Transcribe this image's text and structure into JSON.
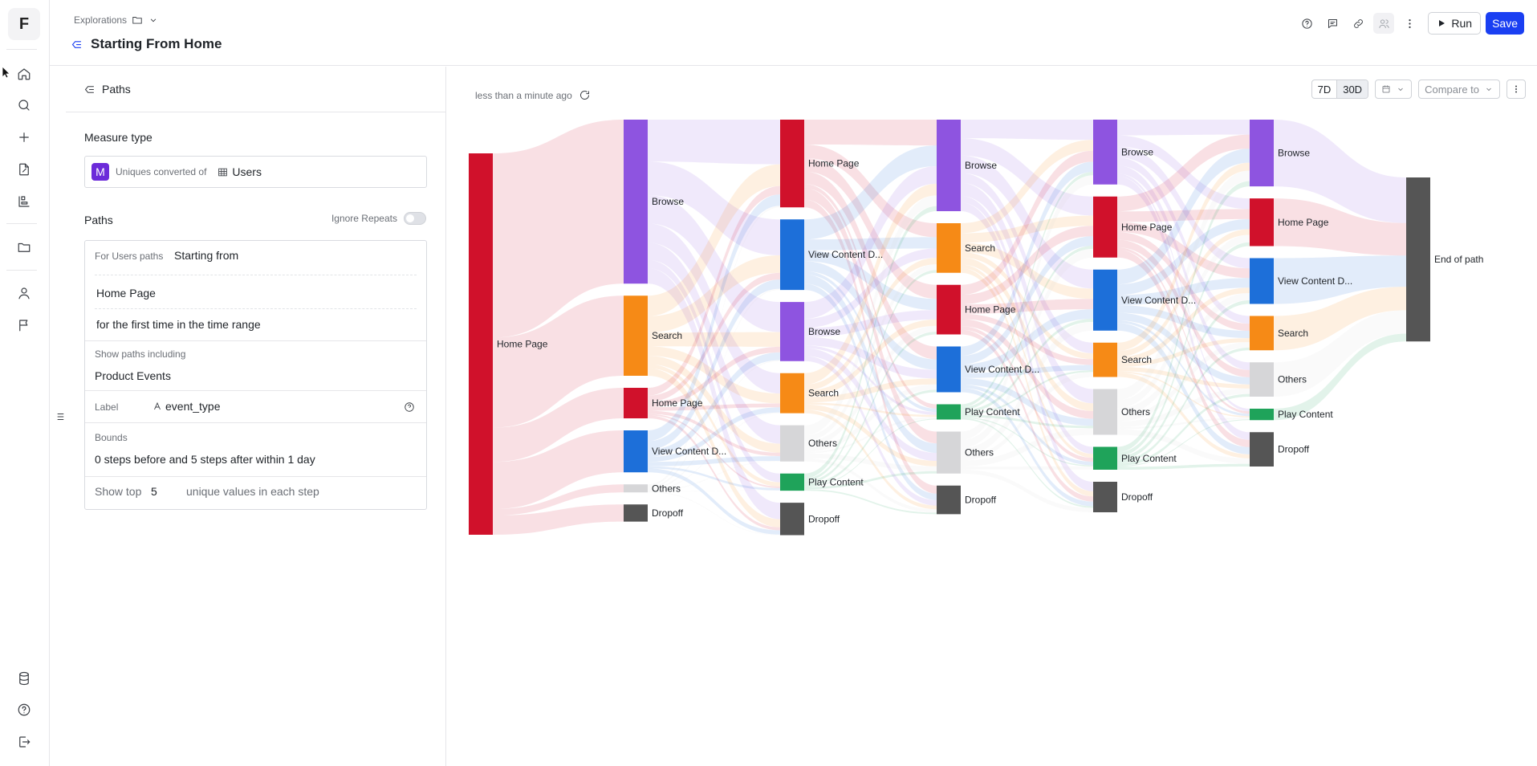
{
  "app": {
    "logo_letter": "F"
  },
  "header": {
    "breadcrumb": "Explorations",
    "title": "Starting From Home",
    "run_label": "Run",
    "save_label": "Save"
  },
  "sidebar": {
    "panel_title": "Paths",
    "measure_type_title": "Measure type",
    "measure_badge": "M",
    "measure_text": "Uniques converted of",
    "measure_entity": "Users",
    "paths_title": "Paths",
    "ignore_repeats_label": "Ignore Repeats",
    "for_paths_label": "For Users paths",
    "starting_from": "Starting from",
    "start_event": "Home Page",
    "first_time_text": "for the first time in the time range",
    "show_paths_label": "Show paths including",
    "show_paths_value": "Product Events",
    "label_caption": "Label",
    "label_value": "event_type",
    "bounds_caption": "Bounds",
    "bounds_value": "0 steps before and 5 steps after within 1 day",
    "show_top_caption": "Show top",
    "show_top_value": "5",
    "show_top_suffix": "unique values in each step"
  },
  "toolbar": {
    "updated_text": "less than a minute ago",
    "range_7d": "7D",
    "range_30d": "30D",
    "compare_placeholder": "Compare to"
  },
  "colors": {
    "home": "#d0112b",
    "browse": "#8e54e0",
    "search": "#f68a16",
    "view": "#1d6fd9",
    "others": "#d6d6d8",
    "play": "#1fa35a",
    "dropoff": "#555555",
    "end": "#555555"
  },
  "chart_data": {
    "type": "sankey",
    "steps": [
      {
        "step": 0,
        "nodes": [
          {
            "label": "Home Page",
            "cat": "home",
            "value": 100
          }
        ]
      },
      {
        "step": 1,
        "nodes": [
          {
            "label": "Browse",
            "cat": "browse",
            "value": 43
          },
          {
            "label": "Search",
            "cat": "search",
            "value": 21
          },
          {
            "label": "Home Page",
            "cat": "home",
            "value": 8
          },
          {
            "label": "View Content D...",
            "cat": "view",
            "value": 11
          },
          {
            "label": "Others",
            "cat": "others",
            "value": 1.5
          },
          {
            "label": "Dropoff",
            "cat": "dropoff",
            "value": 4.5
          }
        ]
      },
      {
        "step": 2,
        "nodes": [
          {
            "label": "Home Page",
            "cat": "home",
            "value": 23
          },
          {
            "label": "View Content D...",
            "cat": "view",
            "value": 18.5
          },
          {
            "label": "Browse",
            "cat": "browse",
            "value": 15.5
          },
          {
            "label": "Search",
            "cat": "search",
            "value": 10.5
          },
          {
            "label": "Others",
            "cat": "others",
            "value": 9.5
          },
          {
            "label": "Play Content",
            "cat": "play",
            "value": 4.5
          },
          {
            "label": "Dropoff",
            "cat": "dropoff",
            "value": 8.5
          }
        ]
      },
      {
        "step": 3,
        "nodes": [
          {
            "label": "Browse",
            "cat": "browse",
            "value": 24
          },
          {
            "label": "Search",
            "cat": "search",
            "value": 13
          },
          {
            "label": "Home Page",
            "cat": "home",
            "value": 13
          },
          {
            "label": "View Content D...",
            "cat": "view",
            "value": 12
          },
          {
            "label": "Play Content",
            "cat": "play",
            "value": 4
          },
          {
            "label": "Others",
            "cat": "others",
            "value": 11
          },
          {
            "label": "Dropoff",
            "cat": "dropoff",
            "value": 7.5
          }
        ]
      },
      {
        "step": 4,
        "nodes": [
          {
            "label": "Browse",
            "cat": "browse",
            "value": 17
          },
          {
            "label": "Home Page",
            "cat": "home",
            "value": 16
          },
          {
            "label": "View Content D...",
            "cat": "view",
            "value": 16
          },
          {
            "label": "Search",
            "cat": "search",
            "value": 9
          },
          {
            "label": "Others",
            "cat": "others",
            "value": 12
          },
          {
            "label": "Play Content",
            "cat": "play",
            "value": 6
          },
          {
            "label": "Dropoff",
            "cat": "dropoff",
            "value": 8
          }
        ]
      },
      {
        "step": 5,
        "nodes": [
          {
            "label": "Browse",
            "cat": "browse",
            "value": 17.5
          },
          {
            "label": "Home Page",
            "cat": "home",
            "value": 12.5
          },
          {
            "label": "View Content D...",
            "cat": "view",
            "value": 12
          },
          {
            "label": "Search",
            "cat": "search",
            "value": 9
          },
          {
            "label": "Others",
            "cat": "others",
            "value": 9
          },
          {
            "label": "Play Content",
            "cat": "play",
            "value": 3
          },
          {
            "label": "Dropoff",
            "cat": "dropoff",
            "value": 9
          }
        ]
      },
      {
        "step": 6,
        "nodes": [
          {
            "label": "End of path",
            "cat": "end",
            "value": 43
          }
        ]
      }
    ]
  }
}
